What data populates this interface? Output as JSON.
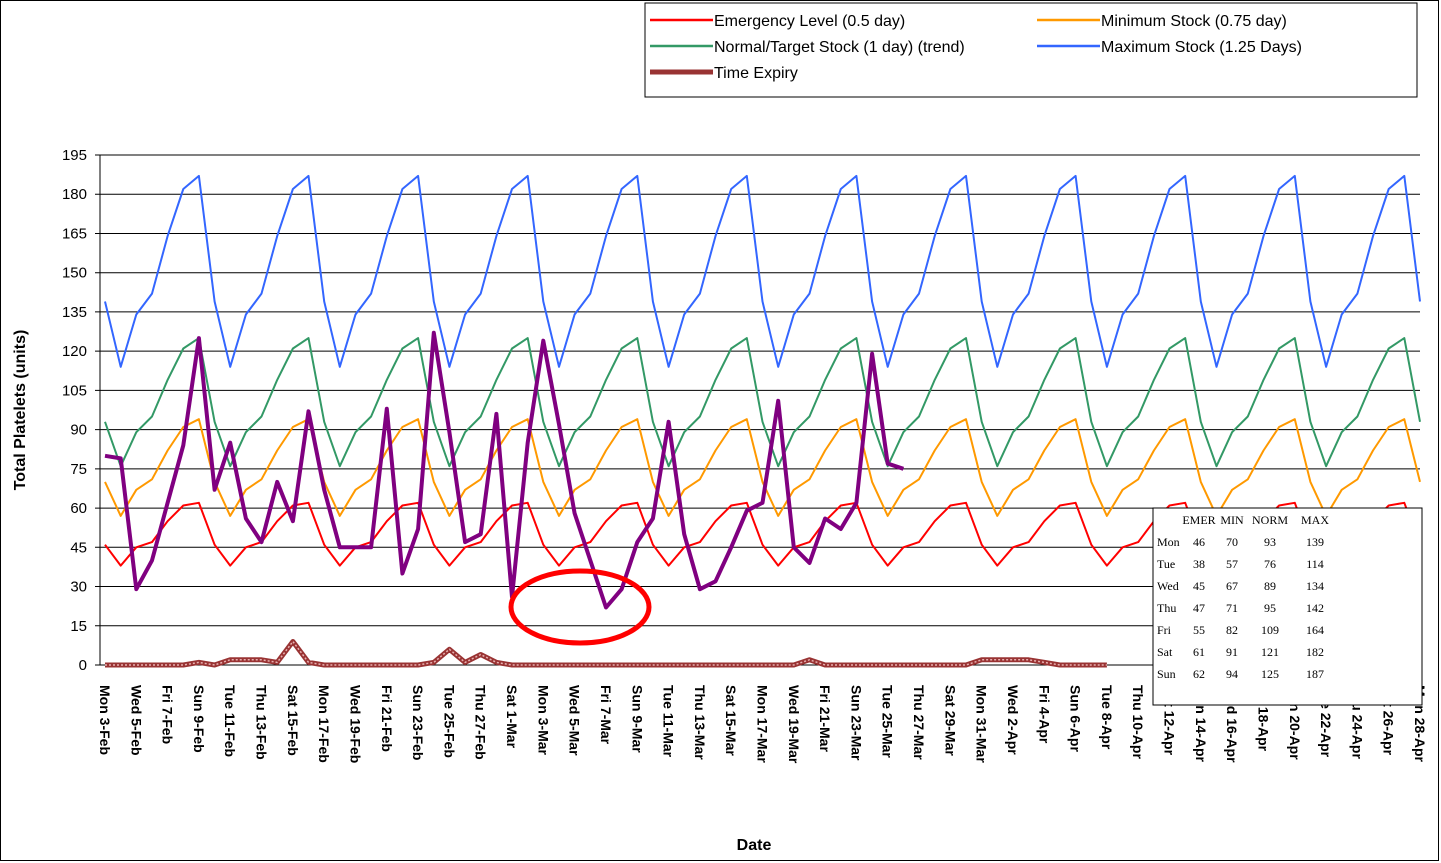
{
  "chart_data": {
    "type": "line",
    "title": "",
    "xlabel": "Date",
    "ylabel": "Total Platelets (units)",
    "ylim": [
      0,
      195
    ],
    "yticks": [
      0,
      15,
      30,
      45,
      60,
      75,
      90,
      105,
      120,
      135,
      150,
      165,
      180,
      195
    ],
    "grid": "horizontal",
    "legend_position": "top-right",
    "days_total": 85,
    "x_tick_labels": [
      "Mon 3-Feb",
      "Wed 5-Feb",
      "Fri 7-Feb",
      "Sun 9-Feb",
      "Tue 11-Feb",
      "Thu 13-Feb",
      "Sat 15-Feb",
      "Mon 17-Feb",
      "Wed 19-Feb",
      "Fri 21-Feb",
      "Sun 23-Feb",
      "Tue 25-Feb",
      "Thu 27-Feb",
      "Sat 1-Mar",
      "Mon 3-Mar",
      "Wed 5-Mar",
      "Fri 7-Mar",
      "Sun 9-Mar",
      "Tue 11-Mar",
      "Thu 13-Mar",
      "Sat 15-Mar",
      "Mon 17-Mar",
      "Wed 19-Mar",
      "Fri 21-Mar",
      "Sun 23-Mar",
      "Tue 25-Mar",
      "Thu 27-Mar",
      "Sat 29-Mar",
      "Mon 31-Mar",
      "Wed 2-Apr",
      "Fri 4-Apr",
      "Sun 6-Apr",
      "Tue 8-Apr",
      "Thu 10-Apr",
      "Sat 12-Apr",
      "Mon 14-Apr",
      "Wed 16-Apr",
      "Fri 18-Apr",
      "Sun 20-Apr",
      "Tue 22-Apr",
      "Thu 24-Apr",
      "Sat 26-Apr",
      "Mon 28-Apr"
    ],
    "weekly_pattern_days": [
      "Mon",
      "Tue",
      "Wed",
      "Thu",
      "Fri",
      "Sat",
      "Sun"
    ],
    "series": [
      {
        "name": "Emergency Level (0.5 day)",
        "color": "#ff0000",
        "weekly": [
          46,
          38,
          45,
          47,
          55,
          61,
          62
        ]
      },
      {
        "name": "Minimum Stock (0.75 day)",
        "color": "#ff9900",
        "weekly": [
          70,
          57,
          67,
          71,
          82,
          91,
          94
        ]
      },
      {
        "name": "Normal/Target Stock (1 day) (trend)",
        "color": "#339966",
        "weekly": [
          93,
          76,
          89,
          95,
          109,
          121,
          125
        ]
      },
      {
        "name": "Maximum Stock (1.25 Days)",
        "color": "#3366ff",
        "weekly": [
          139,
          114,
          134,
          142,
          164,
          182,
          187
        ]
      },
      {
        "name": "Time Expiry",
        "color": "#993333",
        "values": [
          0,
          0,
          0,
          0,
          0,
          0,
          1,
          0,
          2,
          2,
          2,
          1,
          9,
          1,
          0,
          0,
          0,
          0,
          0,
          0,
          0,
          1,
          6,
          1,
          4,
          1,
          0,
          0,
          0,
          0,
          0,
          0,
          0,
          0,
          0,
          0,
          0,
          0,
          0,
          0,
          0,
          0,
          0,
          0,
          0,
          2,
          0,
          0,
          0,
          0,
          0,
          0,
          0,
          0,
          0,
          0,
          2,
          2,
          2,
          2,
          1,
          0,
          0,
          0,
          0
        ]
      },
      {
        "name": "",
        "color": "#800080",
        "values": [
          80,
          79,
          29,
          40,
          62,
          84,
          125,
          67,
          85,
          56,
          47,
          70,
          55,
          97,
          67,
          45,
          45,
          45,
          98,
          35,
          52,
          127,
          89,
          47,
          50,
          96,
          26,
          85,
          124,
          92,
          58,
          40,
          22,
          29,
          47,
          56,
          93,
          50,
          29,
          32,
          45,
          59,
          62,
          101,
          45,
          39,
          56,
          52,
          62,
          119,
          77,
          75
        ]
      }
    ]
  },
  "legend": {
    "items": [
      {
        "label": "Emergency Level (0.5 day)",
        "color": "#ff0000"
      },
      {
        "label": "Minimum Stock (0.75 day)",
        "color": "#ff9900"
      },
      {
        "label": "Normal/Target Stock (1 day) (trend)",
        "color": "#339966"
      },
      {
        "label": "Maximum Stock (1.25 Days)",
        "color": "#3366ff"
      },
      {
        "label": "Time Expiry",
        "color": "#993333"
      }
    ]
  },
  "table": {
    "headers": [
      "EMER",
      "MIN",
      "NORM",
      "MAX"
    ],
    "rows": [
      {
        "day": "Mon",
        "values": [
          "46",
          "70",
          "93",
          "139"
        ]
      },
      {
        "day": "Tue",
        "values": [
          "38",
          "57",
          "76",
          "114"
        ]
      },
      {
        "day": "Wed",
        "values": [
          "45",
          "67",
          "89",
          "134"
        ]
      },
      {
        "day": "Thu",
        "values": [
          "47",
          "71",
          "95",
          "142"
        ]
      },
      {
        "day": "Fri",
        "values": [
          "55",
          "82",
          "109",
          "164"
        ]
      },
      {
        "day": "Sat",
        "values": [
          "61",
          "91",
          "121",
          "182"
        ]
      },
      {
        "day": "Sun",
        "values": [
          "62",
          "94",
          "125",
          "187"
        ]
      }
    ]
  },
  "annotation": {
    "shape": "ellipse",
    "color": "#ff0000"
  }
}
